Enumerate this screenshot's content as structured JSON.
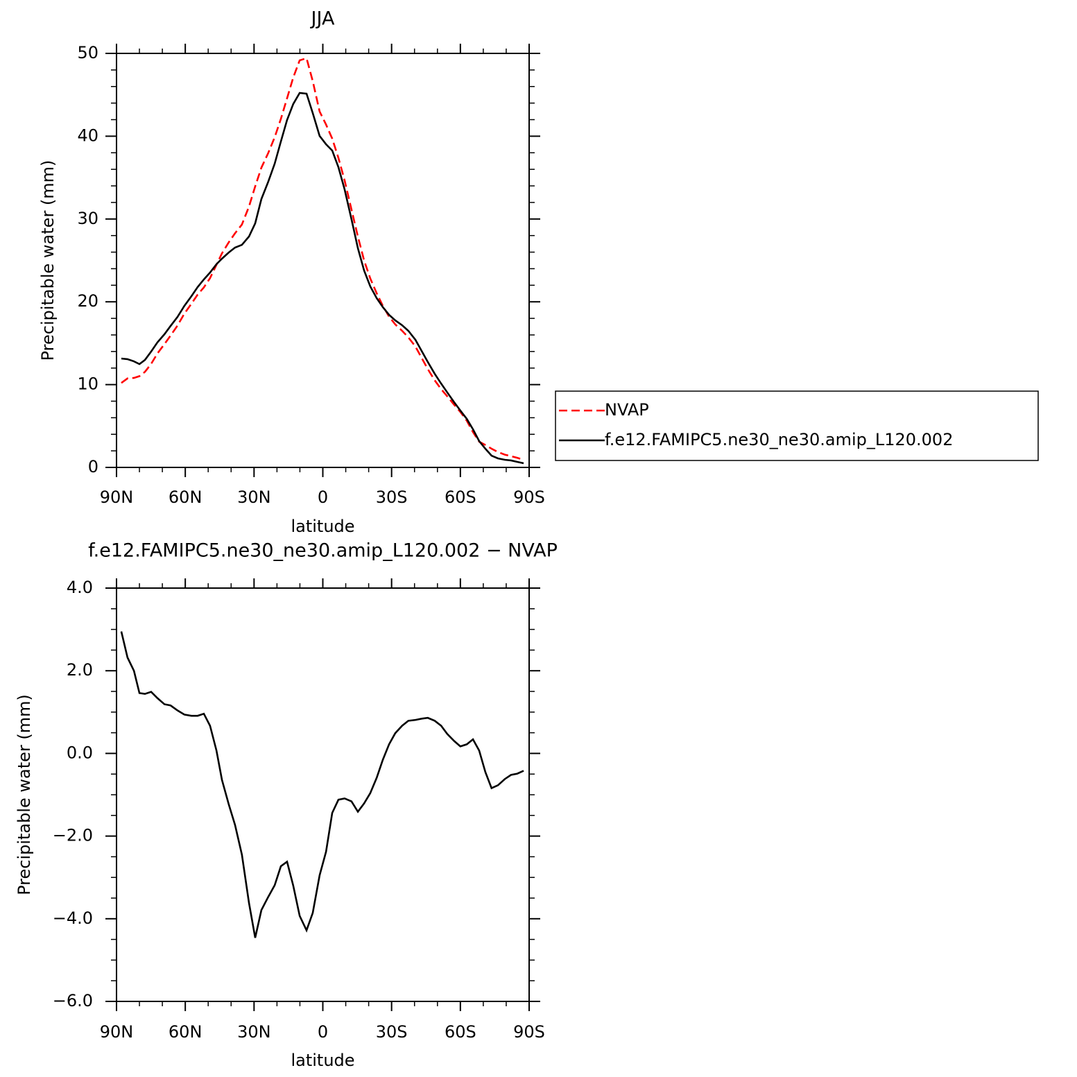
{
  "chart_data": [
    {
      "type": "line",
      "title": "JJA",
      "xlabel": "latitude",
      "ylabel": "Precipitable water (mm)",
      "x": [
        87.9,
        85.2,
        82.4,
        80,
        77.6,
        74.9,
        72.2,
        69.1,
        66.4,
        63.4,
        60.4,
        57.3,
        54.6,
        51.9,
        49.2,
        46.4,
        44,
        41,
        38.3,
        35.3,
        32.2,
        29.5,
        26.8,
        23.8,
        21,
        18.3,
        15.6,
        12.9,
        10.1,
        7.1,
        4.4,
        1.4,
        -1.4,
        -4.1,
        -6.8,
        -9.5,
        -12.5,
        -15.3,
        -18,
        -20.7,
        -23.5,
        -26.2,
        -28.9,
        -31.6,
        -34.6,
        -37.3,
        -40.4,
        -43.1,
        -45.8,
        -48.8,
        -51.6,
        -54.3,
        -57.3,
        -60,
        -62.8,
        -65.5,
        -68.2,
        -70.9,
        -73.6,
        -76.4,
        -79.4,
        -82.1,
        -84.8,
        -87.6
      ],
      "series": [
        {
          "name": "NVAP",
          "color": "#ff0000",
          "linestyle": "dashed",
          "values": [
            10.2,
            10.75,
            10.81,
            11.02,
            11.54,
            12.5,
            13.74,
            14.89,
            15.93,
            17.13,
            18.57,
            19.78,
            20.87,
            21.74,
            22.86,
            24.47,
            25.85,
            27.2,
            28.28,
            29.33,
            31.51,
            33.94,
            36.2,
            37.98,
            39.87,
            42.09,
            44.58,
            47.09,
            49.16,
            49.42,
            46.66,
            42.98,
            41.41,
            39.71,
            37.38,
            34.67,
            31.14,
            27.88,
            25.0,
            22.82,
            21.03,
            19.5,
            18.21,
            17.27,
            16.5,
            15.71,
            14.6,
            13.23,
            11.87,
            10.52,
            9.46,
            8.58,
            7.57,
            6.7,
            5.64,
            4.27,
            3.11,
            2.71,
            2.26,
            1.86,
            1.54,
            1.36,
            1.16,
            0.92
          ]
        },
        {
          "name": "f.e12.FAMIPC5.ne30_ne30.amip_L120.002",
          "color": "#000000",
          "linestyle": "solid",
          "values": [
            13.15,
            13.07,
            12.81,
            12.48,
            12.98,
            13.99,
            15.08,
            16.08,
            17.09,
            18.17,
            19.51,
            20.69,
            21.78,
            22.7,
            23.53,
            24.54,
            25.21,
            25.96,
            26.55,
            26.88,
            27.89,
            29.48,
            32.41,
            34.51,
            36.68,
            39.36,
            41.96,
            43.89,
            45.23,
            45.14,
            42.8,
            40.03,
            39.03,
            38.27,
            36.26,
            33.58,
            29.98,
            26.47,
            23.79,
            21.86,
            20.44,
            19.35,
            18.43,
            17.76,
            17.17,
            16.5,
            15.41,
            14.07,
            12.73,
            11.31,
            10.13,
            9.05,
            7.87,
            6.87,
            5.86,
            4.61,
            3.18,
            2.26,
            1.42,
            1.09,
            0.92,
            0.84,
            0.67,
            0.5
          ]
        }
      ],
      "xlim": [
        90,
        -90
      ],
      "xticks": [
        {
          "value": 90,
          "label": "90N"
        },
        {
          "value": 60,
          "label": "60N"
        },
        {
          "value": 30,
          "label": "30N"
        },
        0,
        {
          "value": -30,
          "label": "30S"
        },
        {
          "value": -60,
          "label": "60S"
        },
        {
          "value": -90,
          "label": "90S"
        }
      ],
      "ylim": [
        0,
        50
      ],
      "yticks": [
        0,
        10,
        20,
        30,
        40,
        50
      ],
      "legend": "right"
    },
    {
      "type": "line",
      "title": "f.e12.FAMIPC5.ne30_ne30.amip_L120.002 − NVAP",
      "xlabel": "latitude",
      "ylabel": "Precipitable water (mm)",
      "x": [
        87.9,
        85.2,
        82.4,
        80,
        77.6,
        74.9,
        72.2,
        69.1,
        66.4,
        63.4,
        60.4,
        57.3,
        54.6,
        51.9,
        49.2,
        46.4,
        44,
        41,
        38.3,
        35.3,
        32.2,
        29.5,
        26.8,
        23.8,
        21,
        18.3,
        15.6,
        12.9,
        10.1,
        7.1,
        4.4,
        1.4,
        -1.4,
        -4.1,
        -6.8,
        -9.5,
        -12.5,
        -15.3,
        -18,
        -20.7,
        -23.5,
        -26.2,
        -28.9,
        -31.6,
        -34.6,
        -37.3,
        -40.4,
        -43.1,
        -45.8,
        -48.8,
        -51.6,
        -54.3,
        -57.3,
        -60,
        -62.8,
        -65.5,
        -68.2,
        -70.9,
        -73.6,
        -76.4,
        -79.4,
        -82.1,
        -84.8,
        -87.6
      ],
      "series": [
        {
          "color": "#000000",
          "linestyle": "solid",
          "values": [
            2.95,
            2.32,
            2.0,
            1.46,
            1.44,
            1.49,
            1.34,
            1.19,
            1.16,
            1.04,
            0.94,
            0.91,
            0.91,
            0.96,
            0.67,
            0.07,
            -0.64,
            -1.24,
            -1.73,
            -2.45,
            -3.62,
            -4.46,
            -3.79,
            -3.47,
            -3.19,
            -2.73,
            -2.62,
            -3.2,
            -3.93,
            -4.28,
            -3.86,
            -2.95,
            -2.38,
            -1.44,
            -1.12,
            -1.09,
            -1.16,
            -1.41,
            -1.21,
            -0.96,
            -0.59,
            -0.15,
            0.22,
            0.49,
            0.67,
            0.79,
            0.81,
            0.84,
            0.86,
            0.79,
            0.67,
            0.47,
            0.3,
            0.17,
            0.22,
            0.34,
            0.07,
            -0.45,
            -0.84,
            -0.77,
            -0.62,
            -0.52,
            -0.49,
            -0.42
          ]
        }
      ],
      "xlim": [
        90,
        -90
      ],
      "xticks": [
        {
          "value": 90,
          "label": "90N"
        },
        {
          "value": 60,
          "label": "60N"
        },
        {
          "value": 30,
          "label": "30N"
        },
        0,
        {
          "value": -30,
          "label": "30S"
        },
        {
          "value": -60,
          "label": "60S"
        },
        {
          "value": -90,
          "label": "90S"
        }
      ],
      "ylim": [
        -6,
        4
      ],
      "yticks": [
        {
          "value": -6,
          "label": "−6.0"
        },
        {
          "value": -4,
          "label": "−4.0"
        },
        {
          "value": -2,
          "label": "−2.0"
        },
        {
          "value": 0,
          "label": "0.0"
        },
        {
          "value": 2,
          "label": "2.0"
        },
        {
          "value": 4,
          "label": "4.0"
        }
      ]
    }
  ]
}
